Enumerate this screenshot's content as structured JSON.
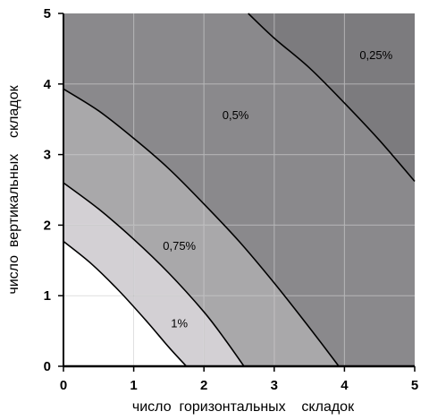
{
  "chart_data": {
    "type": "area",
    "title": "",
    "xlabel": "число  горизонтальных    складок",
    "ylabel": "число  вертикальных    складок",
    "xlim": [
      0,
      5
    ],
    "ylim": [
      0,
      5
    ],
    "x_ticks": [
      "0",
      "1",
      "2",
      "3",
      "4",
      "5"
    ],
    "y_ticks": [
      "0",
      "1",
      "2",
      "3",
      "4",
      "5"
    ],
    "grid": true,
    "boundaries": [
      {
        "x": [
          0,
          0.4,
          0.8,
          1.2,
          1.5,
          1.75
        ],
        "y": [
          1.77,
          1.45,
          1.06,
          0.62,
          0.27,
          0
        ]
      },
      {
        "x": [
          0,
          0.5,
          1.0,
          1.5,
          2.0,
          2.3,
          2.57
        ],
        "y": [
          2.6,
          2.23,
          1.8,
          1.32,
          0.77,
          0.38,
          0
        ]
      },
      {
        "x": [
          0,
          0.5,
          1.0,
          1.5,
          2.0,
          2.5,
          3.0,
          3.5,
          3.92
        ],
        "y": [
          3.93,
          3.62,
          3.23,
          2.8,
          2.3,
          1.77,
          1.18,
          0.55,
          0
        ]
      },
      {
        "x": [
          2.63,
          3.0,
          3.5,
          4.0,
          4.5,
          5.0
        ],
        "y": [
          5.0,
          4.65,
          4.23,
          3.73,
          3.2,
          2.62
        ]
      }
    ],
    "zones": [
      {
        "label": "1%",
        "value": 1.0,
        "color": "#ffffff",
        "x": 1.65,
        "y": 0.55
      },
      {
        "label": "0,75%",
        "value": 0.75,
        "color": "#d3d0d4",
        "x": 1.65,
        "y": 1.65
      },
      {
        "label": "0,5%",
        "value": 0.5,
        "color": "#a9a8aa",
        "x": 2.45,
        "y": 3.5
      },
      {
        "label": "0,25%",
        "value": 0.25,
        "color": "#7c7b7e",
        "x": 4.45,
        "y": 4.35
      }
    ],
    "region_colors": [
      "#ffffff",
      "#d3d0d4",
      "#a9a8aa",
      "#8a898c",
      "#7c7b7e"
    ],
    "line_color": "#000000",
    "grid_color": "#ffffff"
  }
}
